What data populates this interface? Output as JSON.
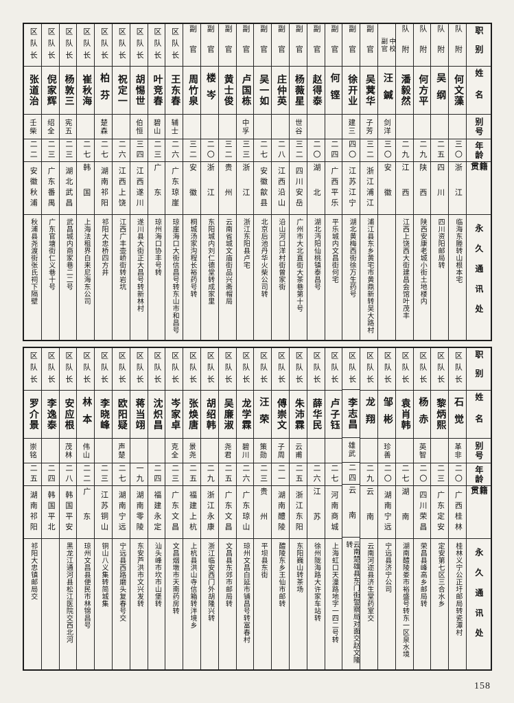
{
  "page": {
    "number": "158"
  },
  "table": {
    "row_headers": [
      "职别",
      "姓名",
      "别号",
      "年龄",
      "籍贯",
      "永久通讯处"
    ]
  },
  "sections": [
    {
      "people": [
        {
          "position": "队附",
          "name": "何文藻",
          "alias": "",
          "age": "三〇",
          "origin": "浙江",
          "address": "临海东塍转山根本宅"
        },
        {
          "position": "队附",
          "name": "吴纲",
          "alias": "",
          "age": "二五",
          "origin": "四川",
          "address": "四川资阳邮局转"
        },
        {
          "position": "队附",
          "name": "何方平",
          "alias": "",
          "age": "二九",
          "origin": "陕西",
          "address": "陕西安康老城小街土地楼内"
        },
        {
          "position": "队附",
          "name": "潘毅然",
          "alias": "",
          "age": "二九",
          "origin": "江西",
          "address": "江西上饶西大街建昌会馆叶茂丰"
        },
        {
          "position": "中校\n副官",
          "name": "汪鍼",
          "alias": "剑洋",
          "age": "三〇",
          "origin": "安徽",
          "address": ""
        },
        {
          "position": "副官",
          "name": "吴蓂华",
          "alias": "子芳",
          "age": "三二",
          "origin": "浙江浦江",
          "address": "浦江县东乡黄宅市黄鼎新转吴大路村"
        },
        {
          "position": "副官",
          "name": "徐开业",
          "alias": "建三",
          "age": "四〇",
          "origin": "江苏江宁",
          "address": "湖北黄梅西街徐万生药号"
        },
        {
          "position": "副官",
          "name": "何铿",
          "alias": "",
          "age": "二四",
          "origin": "广西平乐",
          "address": "平乐城内文昌街何宅"
        },
        {
          "position": "副官",
          "name": "赵得泰",
          "alias": "",
          "age": "二〇",
          "origin": "湖北",
          "address": "湖北沔阳仙桃镇泰昌号"
        },
        {
          "position": "副官",
          "name": "杨薇星",
          "alias": "世谷",
          "age": "三二",
          "origin": "四川安岳",
          "address": "广州市大北直街大茶巷第十号"
        },
        {
          "position": "副官",
          "name": "庄仲英",
          "alias": "",
          "age": "二八",
          "origin": "江西沿山",
          "address": "沿山河口洋村街曾家街"
        },
        {
          "position": "副官",
          "name": "吴一如",
          "alias": "",
          "age": "二七",
          "origin": "安徽歙县",
          "address": "北京后池丹华火柴公司转"
        },
        {
          "position": "副官",
          "name": "卢国栋",
          "alias": "中孚",
          "age": "三三",
          "origin": "浙江",
          "address": "浙江东阳县卢宅"
        },
        {
          "position": "副官",
          "name": "黄士俊",
          "alias": "",
          "age": "三二",
          "origin": "贵州",
          "address": "云南省城文庙街品兴斋帽局"
        },
        {
          "position": "副官",
          "name": "楼岑",
          "alias": "",
          "age": "二〇",
          "origin": "浙江",
          "address": "东阳城内刘仁德堂转成家里"
        },
        {
          "position": "副官",
          "name": "周竹泉",
          "alias": "",
          "age": "三二",
          "origin": "安徽",
          "address": "桐城汤家沟程长裕药号转"
        },
        {
          "position": "区队长",
          "name": "王东春",
          "alias": "辅士",
          "age": "二六",
          "origin": "广东琼崖",
          "address": "琼崖海口大街信昌号转东山市和昌号"
        },
        {
          "position": "区队长",
          "name": "叶竞春",
          "alias": "碧山",
          "age": "二三",
          "origin": "广东",
          "address": "琼州海口协丰号转"
        },
        {
          "position": "区队长",
          "name": "胡惕世",
          "alias": "伯恒",
          "age": "三四",
          "origin": "江西遂川",
          "address": "遂川县大街正大昌号转新林村"
        },
        {
          "position": "区队长",
          "name": "祝定一",
          "alias": "",
          "age": "二六",
          "origin": "江西上饶",
          "address": "江西广丰壶峤街转岩坑"
        },
        {
          "position": "区队长",
          "name": "柏芬",
          "alias": "楚森",
          "age": "二七",
          "origin": "湖南祁阳",
          "address": "祁阳大忠桥四方井"
        },
        {
          "position": "区队长",
          "name": "崔秋海",
          "alias": "",
          "age": "二七",
          "origin": "韩国",
          "address": "上海法租界白来尼海东公司"
        },
        {
          "position": "区队长",
          "name": "杨敦三",
          "alias": "宪五",
          "age": "二三",
          "origin": "湖北武昌",
          "address": "武昌城内商家巷二二号"
        },
        {
          "position": "区队长",
          "name": "倪家辉",
          "alias": "绍全",
          "age": "二三",
          "origin": "广东番禺",
          "address": "广东官塘街仁义巷十号"
        },
        {
          "position": "区队长",
          "name": "张道治",
          "alias": "壬柴",
          "age": "二二",
          "origin": "安徽秋浦",
          "address": "秋浦县尧渡街张氏祠下隔壁"
        }
      ]
    },
    {
      "people": [
        {
          "position": "区队长",
          "name": "石觉",
          "alias": "革非",
          "age": "二〇",
          "origin": "广西桂林",
          "address": "桂林义宁公正圩邮局转瓷潭村"
        },
        {
          "position": "区队长",
          "name": "黎炳熙",
          "alias": "",
          "age": "二三",
          "origin": "广东定安",
          "address": "定安第七区三合水乡"
        },
        {
          "position": "区队长",
          "name": "杨赤",
          "alias": "英智",
          "age": "二〇",
          "origin": "四川荣昌",
          "address": "荣昌县峰高乡邮局转"
        },
        {
          "position": "区队长",
          "name": "袁肖韩",
          "alias": "",
          "age": "二七",
          "origin": "湖南",
          "address": "湖南醴陵娄市裕盛号转东一区泉水境"
        },
        {
          "position": "区队长",
          "name": "邹彬",
          "alias": "珍善",
          "age": "二〇",
          "origin": "湖南宁远",
          "address": "宁远县济宁公司"
        },
        {
          "position": "区队长",
          "name": "龙翔",
          "alias": "",
          "age": "二九",
          "origin": "云南",
          "address": "云南河迩县济生堂药室交"
        },
        {
          "position": "区队长",
          "name": "李志昌",
          "alias": "雄武",
          "age": "二四",
          "origin": "云南",
          "address": "云南楚雄县东门街警察局对面交赵文隆转"
        },
        {
          "position": "区队长",
          "name": "卢子钰",
          "alias": "",
          "age": "二七",
          "origin": "河南商城",
          "address": "上海虹口天潼路地字一四二号转"
        },
        {
          "position": "区队长",
          "name": "薛华民",
          "alias": "",
          "age": "二六",
          "origin": "江苏",
          "address": "徐州陇海路大许家车站转"
        },
        {
          "position": "区队长",
          "name": "朱沛霖",
          "alias": "云甫",
          "age": "二五",
          "origin": "浙江东阳",
          "address": "东阳巍山转茶场"
        },
        {
          "position": "区队长",
          "name": "傅崇文",
          "alias": "子周",
          "age": "二一",
          "origin": "湖南醴陵",
          "address": "醴陵东乡王仙市邮转"
        },
        {
          "position": "区队长",
          "name": "汪荣",
          "alias": "策勋",
          "age": "二三",
          "origin": "贵州",
          "address": "平坝县东街"
        },
        {
          "position": "区队长",
          "name": "龙学霖",
          "alias": "碧川",
          "age": "二六",
          "origin": "广东琼山",
          "address": "琼州文昌白延市铺昌号转富春村"
        },
        {
          "position": "区队长",
          "name": "吴廉淑",
          "alias": "尧君",
          "age": "二五",
          "origin": "广东文昌",
          "address": "文昌县东郊市邮局转"
        },
        {
          "position": "区队长",
          "name": "胡绍韩",
          "alias": "",
          "age": "二九",
          "origin": "浙江永康",
          "address": "浙江临安西门外胡隆兴转"
        },
        {
          "position": "区队长",
          "name": "张焕唐",
          "alias": "景尧",
          "age": "二五",
          "origin": "福建上杭",
          "address": "上杭县洪山寺信箱转泮境乡"
        },
        {
          "position": "区队长",
          "name": "岑家卓",
          "alias": "克全",
          "age": "二三",
          "origin": "广东文昌",
          "address": "文昌烟墩市天南药房转"
        },
        {
          "position": "区队长",
          "name": "沈炽昌",
          "alias": "",
          "age": "二四",
          "origin": "福建永定",
          "address": "汕头峰市坎市山堡转"
        },
        {
          "position": "区队长",
          "name": "蒋当翊",
          "alias": "",
          "age": "一九",
          "origin": "湖南零陵",
          "address": "东安芦洪市文兴发转"
        },
        {
          "position": "区队长",
          "name": "欧阳疑",
          "alias": "声楚",
          "age": "二七",
          "origin": "湖南宁远",
          "address": "宁远县西路磨头复春号交"
        },
        {
          "position": "区队长",
          "name": "李晓峰",
          "alias": "",
          "age": "二三",
          "origin": "江苏铜山",
          "address": "铜山八义集转简城集"
        },
        {
          "position": "区队长",
          "name": "林本",
          "alias": "伟山",
          "age": "二二",
          "origin": "广东",
          "address": "琼州文昌县便民市林锦昌号"
        },
        {
          "position": "区队长",
          "name": "安应根",
          "alias": "茂林",
          "age": "二八",
          "origin": "韩国平安",
          "address": "黑龙江通河县松江医院交西北河"
        },
        {
          "position": "区队长",
          "name": "李逸泰",
          "alias": "",
          "age": "二四",
          "origin": "韩国平北",
          "address": ""
        },
        {
          "position": "区队长",
          "name": "罗介景",
          "alias": "崇铭",
          "age": "二五",
          "origin": "湖南祁阳",
          "address": "祁阳大忠镇邮局交"
        }
      ]
    }
  ]
}
